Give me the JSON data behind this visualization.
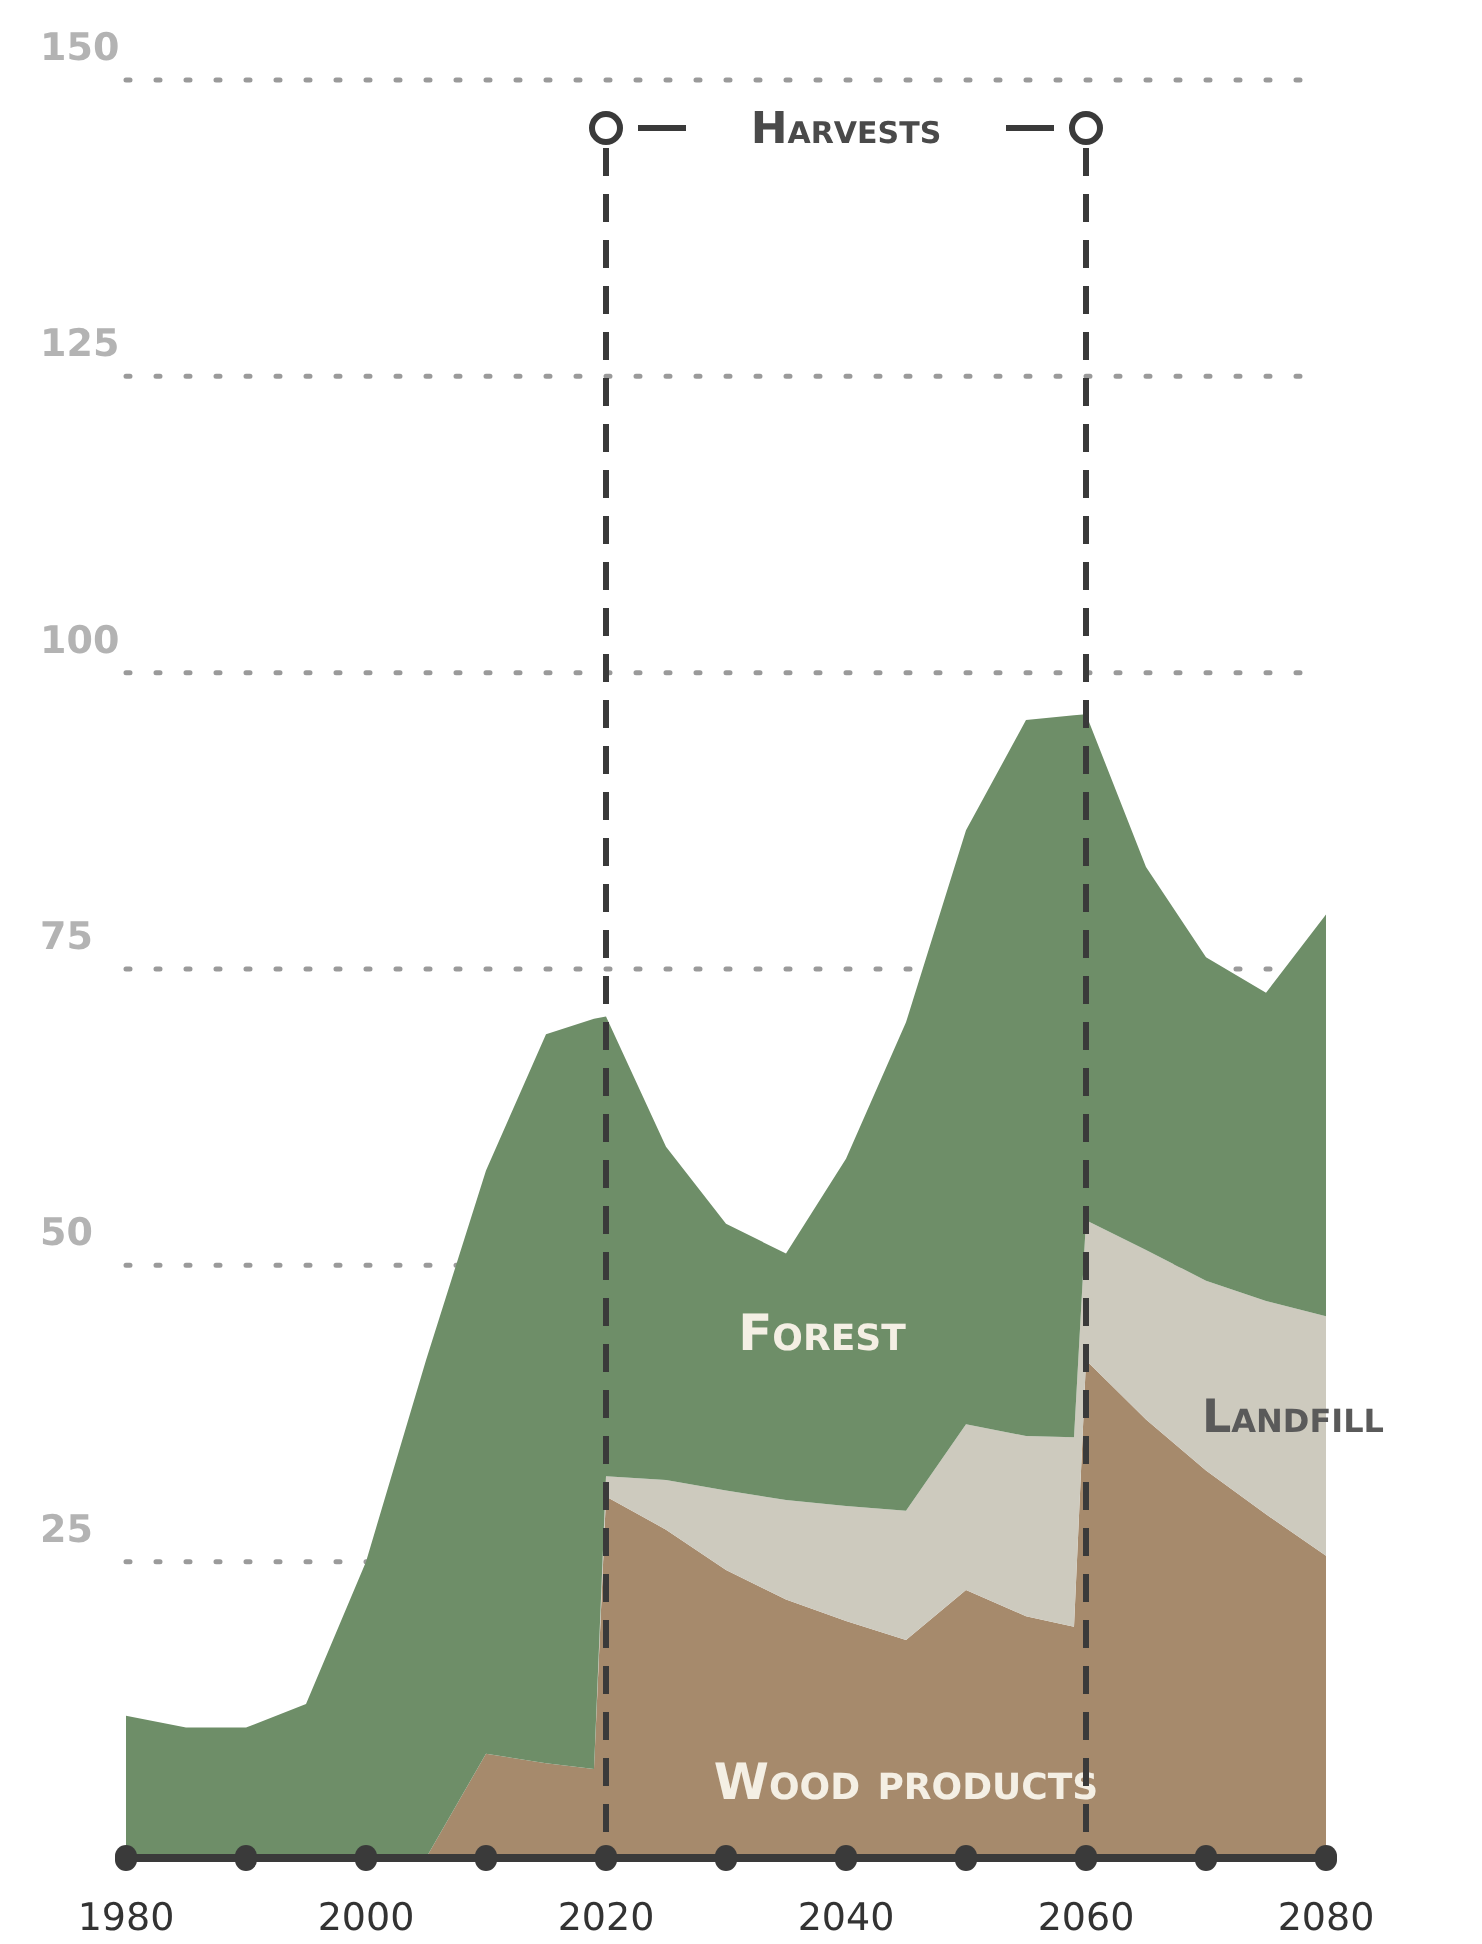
{
  "chart_data": {
    "type": "area",
    "stacked": true,
    "x": [
      1980,
      1985,
      1990,
      1995,
      2000,
      2005,
      2010,
      2015,
      2019,
      2020,
      2025,
      2030,
      2035,
      2040,
      2045,
      2050,
      2055,
      2059,
      2060,
      2065,
      2070,
      2075,
      2080
    ],
    "series": [
      {
        "name": "Wood products",
        "color": "#a68a6c",
        "values": [
          0,
          0,
          0,
          0,
          0,
          0,
          8.8,
          8,
          7.5,
          30.5,
          27.7,
          24.3,
          21.8,
          20,
          18.4,
          22.6,
          20.4,
          19.5,
          42,
          37,
          32.7,
          29,
          25.5
        ]
      },
      {
        "name": "Landfill",
        "color": "#cdcabe",
        "values": [
          0,
          0,
          0,
          0,
          0,
          0,
          0,
          0,
          0,
          1.7,
          4.2,
          6.7,
          8.4,
          9.7,
          10.9,
          14,
          15.2,
          16,
          11.8,
          14.3,
          16,
          18,
          20.2
        ]
      },
      {
        "name": "Forest",
        "color": "#6e8e68",
        "values": [
          12,
          11,
          11,
          13,
          25,
          42,
          49.2,
          61.5,
          63.3,
          38.8,
          28.1,
          22.5,
          20.8,
          29.3,
          41.2,
          50.1,
          60.4,
          60.9,
          42.7,
          32.3,
          27.3,
          26,
          33.9
        ]
      }
    ],
    "xlim": [
      1980,
      2080
    ],
    "xticks": [
      1980,
      {
        "value": 1990,
        "label": null
      },
      2000,
      {
        "value": 2010,
        "label": null
      },
      2020,
      {
        "value": 2030,
        "label": null
      },
      2040,
      {
        "value": 2050,
        "label": null
      },
      2060,
      {
        "value": 2070,
        "label": null
      },
      2080
    ],
    "ylim": [
      0,
      150
    ],
    "yticks": [
      25,
      50,
      75,
      100,
      125,
      150
    ],
    "grid": "y",
    "ref_lines": [
      {
        "axis": "x",
        "value": 2020,
        "color": "#3a3a3a",
        "line_style": "dashed"
      },
      {
        "axis": "x",
        "value": 2060,
        "color": "#3a3a3a",
        "line_style": "dashed"
      }
    ],
    "annotations": [
      "Harvests"
    ]
  }
}
